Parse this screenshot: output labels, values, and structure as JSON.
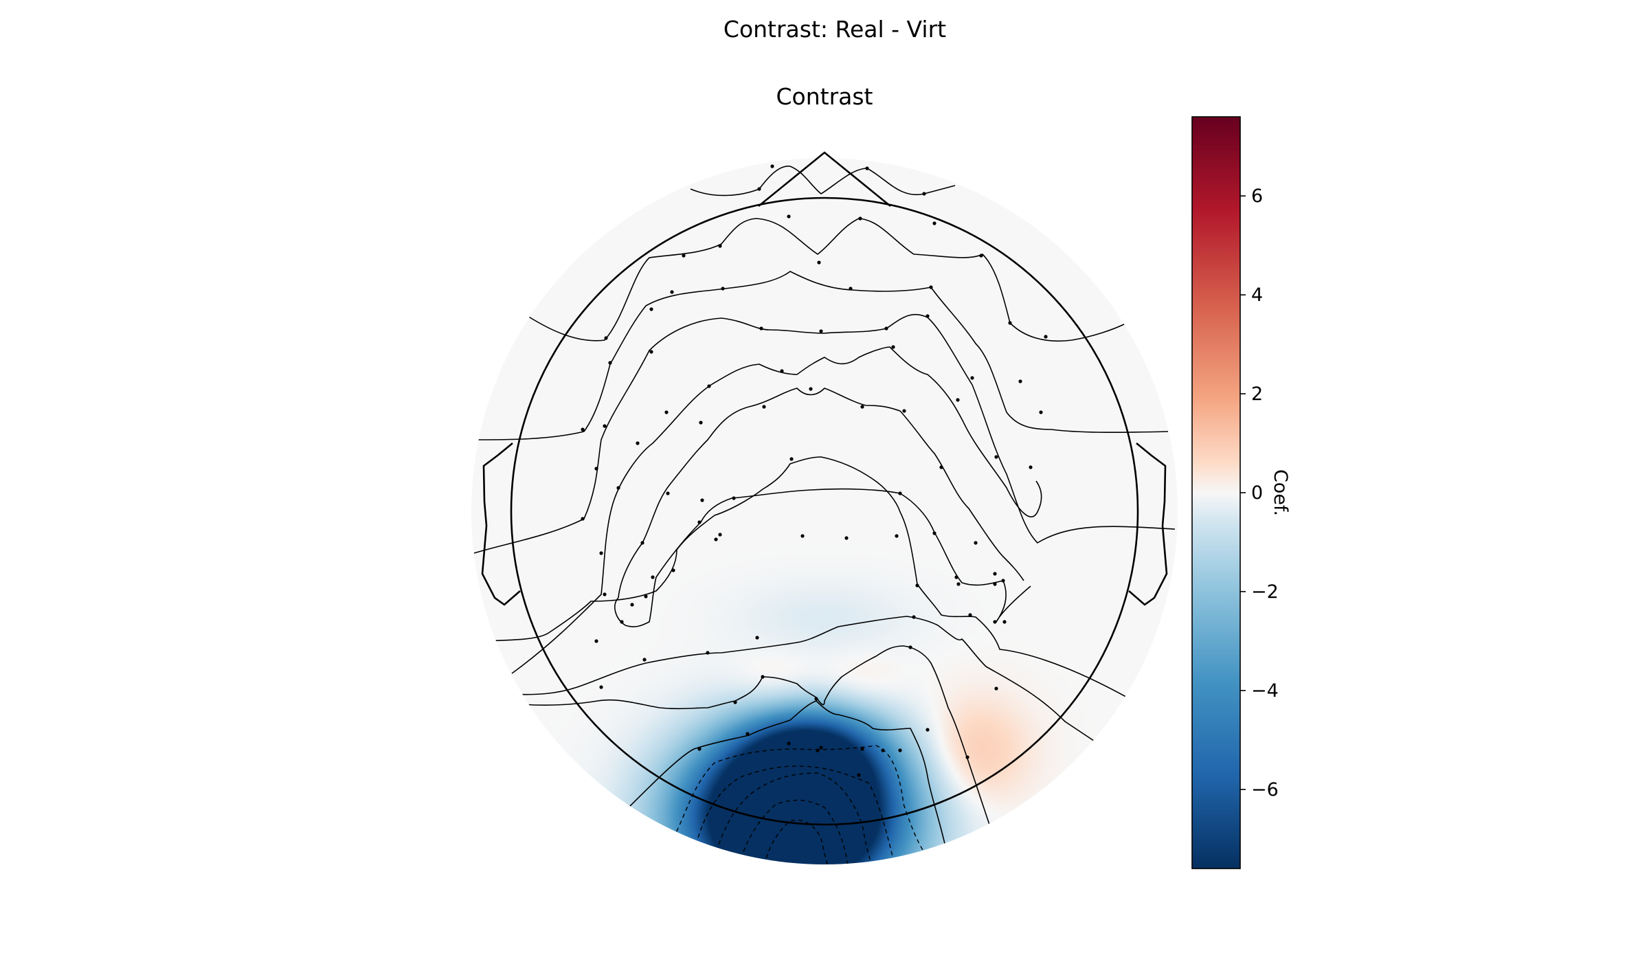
{
  "chart_data": {
    "type": "heatmap",
    "subtype": "eeg-topomap",
    "suptitle": "Contrast: Real - Virt",
    "title": "Contrast",
    "colormap": "RdBu_r",
    "colorbar": {
      "label": "Coef.",
      "range": [
        -7.6,
        7.6
      ],
      "ticks": [
        -6,
        -4,
        -2,
        0,
        2,
        4,
        6
      ],
      "tick_labels": [
        "−6",
        "−4",
        "−2",
        "0",
        "2",
        "4",
        "6"
      ],
      "stops": [
        {
          "value": -7.6,
          "color": "#053061"
        },
        {
          "value": -5.7,
          "color": "#2166ac"
        },
        {
          "value": -3.8,
          "color": "#4393c3"
        },
        {
          "value": -1.9,
          "color": "#92c5de"
        },
        {
          "value": -0.6,
          "color": "#d1e5f0"
        },
        {
          "value": 0,
          "color": "#f7f7f7"
        },
        {
          "value": 0.6,
          "color": "#fddbc7"
        },
        {
          "value": 1.9,
          "color": "#f4a582"
        },
        {
          "value": 3.8,
          "color": "#d6604d"
        },
        {
          "value": 5.7,
          "color": "#b2182b"
        },
        {
          "value": 7.6,
          "color": "#67001f"
        }
      ]
    },
    "field_blobs": [
      {
        "name": "occipital-negative",
        "x": -0.1,
        "y": -0.98,
        "sx": 0.22,
        "sy": 0.17,
        "value": -16
      },
      {
        "name": "occipital-negative-upper",
        "x": -0.04,
        "y": -0.78,
        "sx": 0.15,
        "sy": 0.1,
        "value": -5
      },
      {
        "name": "parietal-slight-negative",
        "x": 0.0,
        "y": -0.34,
        "sx": 0.2,
        "sy": 0.08,
        "value": -0.4
      },
      {
        "name": "right-occipital-positive",
        "x": 0.48,
        "y": -0.77,
        "sx": 0.12,
        "sy": 0.12,
        "value": 1.0
      },
      {
        "name": "left-parietal-positive",
        "x": -0.15,
        "y": -0.56,
        "sx": 0.1,
        "sy": 0.07,
        "value": 0.6
      },
      {
        "name": "right-parietal-positive",
        "x": 0.1,
        "y": -0.56,
        "sx": 0.1,
        "sy": 0.07,
        "value": 0.5
      }
    ]
  }
}
